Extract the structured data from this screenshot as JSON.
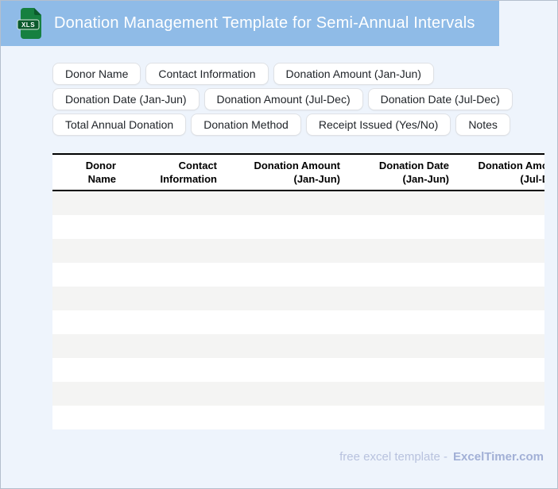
{
  "header": {
    "title": "Donation Management Template for Semi-Annual Intervals",
    "icon_label": "XLS"
  },
  "chips": [
    "Donor Name",
    "Contact Information",
    "Donation Amount (Jan-Jun)",
    "Donation Date (Jan-Jun)",
    "Donation Amount (Jul-Dec)",
    "Donation Date (Jul-Dec)",
    "Total Annual Donation",
    "Donation Method",
    "Receipt Issued (Yes/No)",
    "Notes"
  ],
  "table": {
    "columns": [
      {
        "line1": "Donor",
        "line2": "Name"
      },
      {
        "line1": "Contact",
        "line2": "Information"
      },
      {
        "line1": "Donation Amount",
        "line2": "(Jan-Jun)"
      },
      {
        "line1": "Donation Date",
        "line2": "(Jan-Jun)"
      },
      {
        "line1": "Donation Amount",
        "line2": "(Jul-Dec)"
      }
    ],
    "row_count": 10
  },
  "footer": {
    "text": "free excel template -",
    "brand": "ExcelTimer.com"
  },
  "colors": {
    "header_bg": "#8fbbe7",
    "page_bg": "#eef4fc",
    "stripe": "#f4f4f3",
    "chip_border": "#dfe1e5",
    "footer_text": "#b8c2de",
    "footer_brand": "#a2b0d6",
    "icon_green": "#168040",
    "icon_green_dark": "#0b5a2c"
  }
}
